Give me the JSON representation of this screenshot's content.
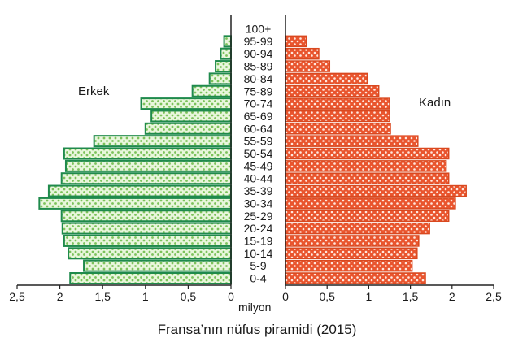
{
  "caption": "Fransa’nın nüfus piramidi (2015)",
  "chart_data": {
    "type": "bar",
    "orientation": "horizontal-pyramid",
    "categories": [
      "0-4",
      "5-9",
      "10-14",
      "15-19",
      "20-24",
      "25-29",
      "30-34",
      "35-39",
      "40-44",
      "45-49",
      "50-54",
      "55-59",
      "60-64",
      "65-69",
      "70-74",
      "75-89",
      "80-84",
      "85-89",
      "90-94",
      "95-99",
      "100+"
    ],
    "series": [
      {
        "name": "Erkek",
        "side": "left",
        "color": "#1f8a4c",
        "fill": "#e4f5d6",
        "dot_color": "#8ccb6a",
        "values": [
          1.88,
          1.72,
          1.9,
          1.95,
          1.97,
          1.98,
          2.24,
          2.13,
          1.98,
          1.93,
          1.95,
          1.6,
          1.0,
          0.93,
          1.05,
          0.45,
          0.25,
          0.18,
          0.12,
          0.08,
          0
        ]
      },
      {
        "name": "Kadın",
        "side": "right",
        "color": "#e8542d",
        "fill": "#e8542d",
        "dot_color": "#ffffff",
        "values": [
          1.68,
          1.52,
          1.58,
          1.6,
          1.73,
          1.96,
          2.04,
          2.17,
          1.96,
          1.93,
          1.96,
          1.59,
          1.26,
          1.25,
          1.25,
          1.12,
          0.98,
          0.53,
          0.4,
          0.25,
          0
        ]
      }
    ],
    "x_ticks": [
      "2,5",
      "2",
      "1,5",
      "1",
      "0,5",
      "0"
    ],
    "x_tick_values": [
      2.5,
      2,
      1.5,
      1,
      0.5,
      0
    ],
    "xlabel": "milyon",
    "xlim": [
      0,
      2.5
    ],
    "grid": false,
    "legend": "none"
  }
}
